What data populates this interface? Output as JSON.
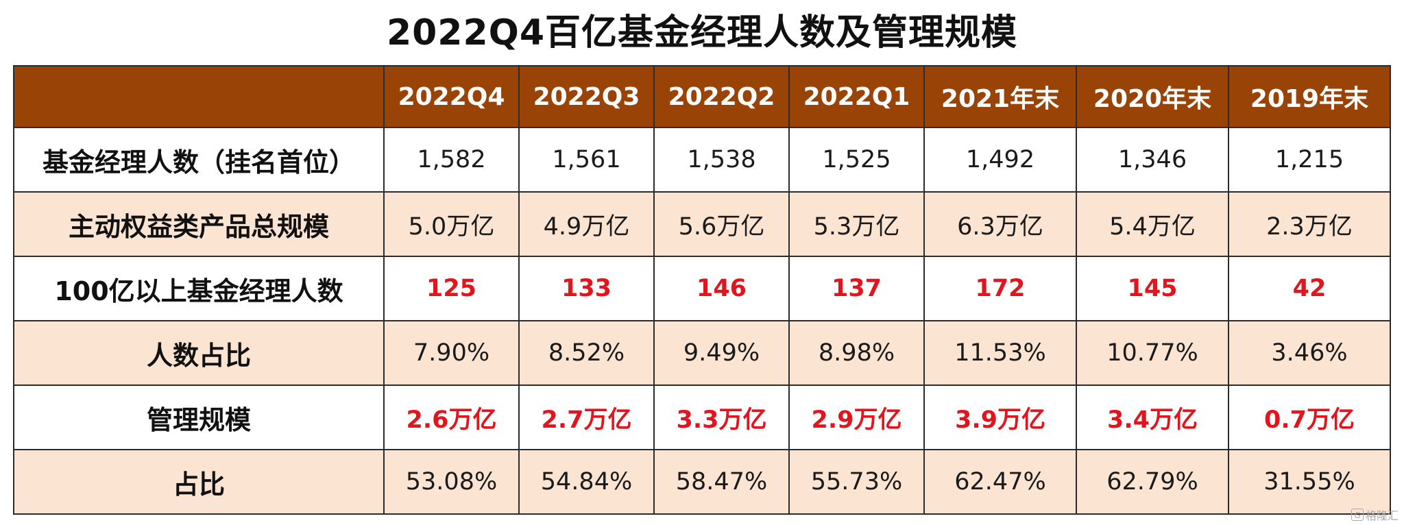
{
  "title": "2022Q4百亿基金经理人数及管理规模",
  "table": {
    "header_corner": "",
    "columns": [
      "2022Q4",
      "2022Q3",
      "2022Q2",
      "2022Q1",
      "2021年末",
      "2020年末",
      "2019年末"
    ],
    "rows": [
      {
        "label": "基金经理人数（挂名首位）",
        "values": [
          "1,582",
          "1,561",
          "1,538",
          "1,525",
          "1,492",
          "1,346",
          "1,215"
        ]
      },
      {
        "label": "主动权益类产品总规模",
        "values": [
          "5.0万亿",
          "4.9万亿",
          "5.6万亿",
          "5.3万亿",
          "6.3万亿",
          "5.4万亿",
          "2.3万亿"
        ]
      },
      {
        "label": "100亿以上基金经理人数",
        "values": [
          "125",
          "133",
          "146",
          "137",
          "172",
          "145",
          "42"
        ]
      },
      {
        "label": "人数占比",
        "values": [
          "7.90%",
          "8.52%",
          "9.49%",
          "8.98%",
          "11.53%",
          "10.77%",
          "3.46%"
        ]
      },
      {
        "label": "管理规模",
        "values": [
          "2.6万亿",
          "2.7万亿",
          "3.3万亿",
          "2.9万亿",
          "3.9万亿",
          "3.4万亿",
          "0.7万亿"
        ]
      },
      {
        "label": "占比",
        "values": [
          "53.08%",
          "54.84%",
          "58.47%",
          "55.73%",
          "62.47%",
          "62.79%",
          "31.55%"
        ]
      }
    ]
  },
  "watermark": {
    "mark": "G",
    "text": "格隆汇"
  },
  "colors": {
    "header_bg": "#9a4306",
    "header_text": "#ffffff",
    "tint_row_bg": "#fce4d3",
    "highlight_text": "#e3141c",
    "border": "#2b2b2b"
  }
}
